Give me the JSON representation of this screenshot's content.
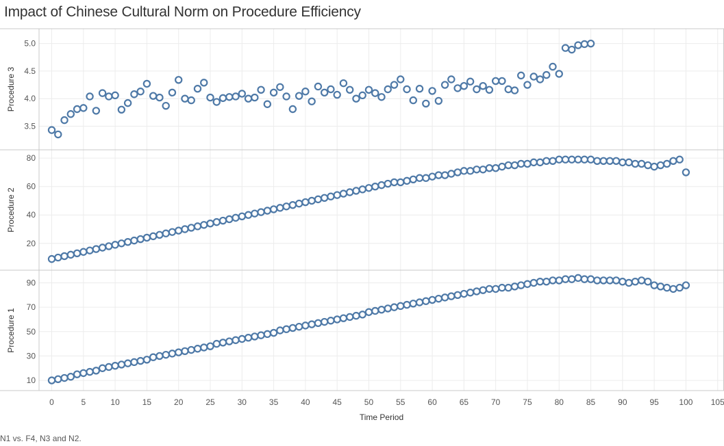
{
  "title": "Impact of Chinese Cultural Norm on Procedure Efficiency",
  "caption": "N1 vs. F4, N3 and N2.",
  "colors": {
    "marker": "#4e79a7",
    "grid": "#ececec",
    "border": "#c8c8c8"
  },
  "chart_data": {
    "type": "scatter",
    "title": "Impact of Chinese Cultural Norm on Procedure Efficiency",
    "xlabel": "Time Period",
    "xlim": [
      -2,
      106
    ],
    "x_ticks": [
      0,
      5,
      10,
      15,
      20,
      25,
      30,
      35,
      40,
      45,
      50,
      55,
      60,
      65,
      70,
      75,
      80,
      85,
      90,
      95,
      100,
      105
    ],
    "grid": true,
    "marker": "open-circle",
    "panels": [
      {
        "name": "Procedure 3",
        "ylabel": "Procedure 3",
        "ylim": [
          3.22,
          5.12
        ],
        "y_ticks": [
          "3.5",
          "4.0",
          "4.5",
          "5.0"
        ],
        "x": [
          0,
          1,
          2,
          3,
          4,
          5,
          6,
          7,
          8,
          9,
          10,
          11,
          12,
          13,
          14,
          15,
          16,
          17,
          18,
          19,
          20,
          21,
          22,
          23,
          24,
          25,
          26,
          27,
          28,
          29,
          30,
          31,
          32,
          33,
          34,
          35,
          36,
          37,
          38,
          39,
          40,
          41,
          42,
          43,
          44,
          45,
          46,
          47,
          48,
          49,
          50,
          51,
          52,
          53,
          54,
          55,
          56,
          57,
          58,
          59,
          60,
          61,
          62,
          63,
          64,
          65,
          66,
          67,
          68,
          69,
          70,
          71,
          72,
          73,
          74,
          75,
          76,
          77,
          78,
          79,
          80,
          81,
          82,
          83,
          84,
          85,
          86
        ],
        "y": [
          3.43,
          3.35,
          3.61,
          3.72,
          3.81,
          3.83,
          4.04,
          3.78,
          4.1,
          4.04,
          4.06,
          3.8,
          3.92,
          4.08,
          4.13,
          4.27,
          4.05,
          4.02,
          3.87,
          4.11,
          4.34,
          4.0,
          3.97,
          4.18,
          4.29,
          4.02,
          3.94,
          4.01,
          4.03,
          4.04,
          4.09,
          4.0,
          4.02,
          4.16,
          3.9,
          4.11,
          4.21,
          4.04,
          3.81,
          4.05,
          4.13,
          3.95,
          4.22,
          4.11,
          4.17,
          4.07,
          4.28,
          4.16,
          4.0,
          4.06,
          4.16,
          4.1,
          4.03,
          4.17,
          4.25,
          4.35,
          4.17,
          3.97,
          4.18,
          3.91,
          4.14,
          3.96,
          4.25,
          4.35,
          4.19,
          4.23,
          4.31,
          4.17,
          4.23,
          4.16,
          4.32,
          4.32,
          4.17,
          4.15,
          4.42,
          4.25,
          4.4,
          4.35,
          4.43,
          4.58,
          4.45,
          4.92,
          4.89,
          4.97,
          4.99,
          5.0,
          null
        ]
      },
      {
        "name": "Procedure 2",
        "ylabel": "Procedure 2",
        "ylim": [
          4,
          82
        ],
        "y_ticks": [
          "20",
          "40",
          "60",
          "80"
        ],
        "x": [
          0,
          1,
          2,
          3,
          4,
          5,
          6,
          7,
          8,
          9,
          10,
          11,
          12,
          13,
          14,
          15,
          16,
          17,
          18,
          19,
          20,
          21,
          22,
          23,
          24,
          25,
          26,
          27,
          28,
          29,
          30,
          31,
          32,
          33,
          34,
          35,
          36,
          37,
          38,
          39,
          40,
          41,
          42,
          43,
          44,
          45,
          46,
          47,
          48,
          49,
          50,
          51,
          52,
          53,
          54,
          55,
          56,
          57,
          58,
          59,
          60,
          61,
          62,
          63,
          64,
          65,
          66,
          67,
          68,
          69,
          70,
          71,
          72,
          73,
          74,
          75,
          76,
          77,
          78,
          79,
          80,
          81,
          82,
          83,
          84,
          85,
          86,
          87,
          88,
          89,
          90,
          91,
          92,
          93,
          94,
          95,
          96,
          97,
          98,
          99,
          100
        ],
        "y": [
          9,
          10,
          11,
          12,
          13,
          14,
          15,
          16,
          17,
          18,
          19,
          20,
          21,
          22,
          23,
          24,
          25,
          26,
          27,
          28,
          29,
          30,
          31,
          32,
          33,
          34,
          35,
          36,
          37,
          38,
          39,
          40,
          41,
          42,
          43,
          44,
          45,
          46,
          47,
          48,
          49,
          50,
          51,
          52,
          53,
          54,
          55,
          56,
          57,
          58,
          59,
          60,
          61,
          62,
          63,
          63,
          64,
          65,
          66,
          66,
          67,
          68,
          68,
          69,
          70,
          71,
          71,
          72,
          72,
          73,
          73,
          74,
          75,
          75,
          76,
          76,
          77,
          77,
          78,
          78,
          79,
          79,
          79,
          79,
          79,
          79,
          78,
          78,
          78,
          78,
          77,
          77,
          76,
          76,
          75,
          74,
          75,
          76,
          78,
          79,
          70
        ]
      },
      {
        "name": "Procedure 1",
        "ylabel": "Procedure 1",
        "ylim": [
          5,
          97
        ],
        "y_ticks": [
          "10",
          "30",
          "50",
          "70",
          "90"
        ],
        "x": [
          0,
          1,
          2,
          3,
          4,
          5,
          6,
          7,
          8,
          9,
          10,
          11,
          12,
          13,
          14,
          15,
          16,
          17,
          18,
          19,
          20,
          21,
          22,
          23,
          24,
          25,
          26,
          27,
          28,
          29,
          30,
          31,
          32,
          33,
          34,
          35,
          36,
          37,
          38,
          39,
          40,
          41,
          42,
          43,
          44,
          45,
          46,
          47,
          48,
          49,
          50,
          51,
          52,
          53,
          54,
          55,
          56,
          57,
          58,
          59,
          60,
          61,
          62,
          63,
          64,
          65,
          66,
          67,
          68,
          69,
          70,
          71,
          72,
          73,
          74,
          75,
          76,
          77,
          78,
          79,
          80,
          81,
          82,
          83,
          84,
          85,
          86,
          87,
          88,
          89,
          90,
          91,
          92,
          93,
          94,
          95,
          96,
          97,
          98,
          99,
          100
        ],
        "y": [
          10,
          11,
          12,
          13,
          15,
          16,
          17,
          18,
          20,
          21,
          22,
          23,
          24,
          25,
          26,
          27,
          29,
          30,
          31,
          32,
          33,
          34,
          35,
          36,
          37,
          38,
          40,
          41,
          42,
          43,
          44,
          45,
          46,
          47,
          48,
          49,
          51,
          52,
          53,
          54,
          55,
          56,
          57,
          58,
          59,
          60,
          61,
          62,
          63,
          64,
          66,
          67,
          68,
          69,
          70,
          71,
          72,
          73,
          74,
          75,
          76,
          77,
          78,
          79,
          80,
          81,
          82,
          83,
          84,
          85,
          85,
          86,
          86,
          87,
          88,
          89,
          90,
          91,
          91,
          92,
          92,
          93,
          93,
          94,
          93,
          93,
          92,
          92,
          92,
          92,
          91,
          90,
          91,
          92,
          91,
          88,
          87,
          86,
          85,
          86,
          88
        ]
      }
    ]
  }
}
